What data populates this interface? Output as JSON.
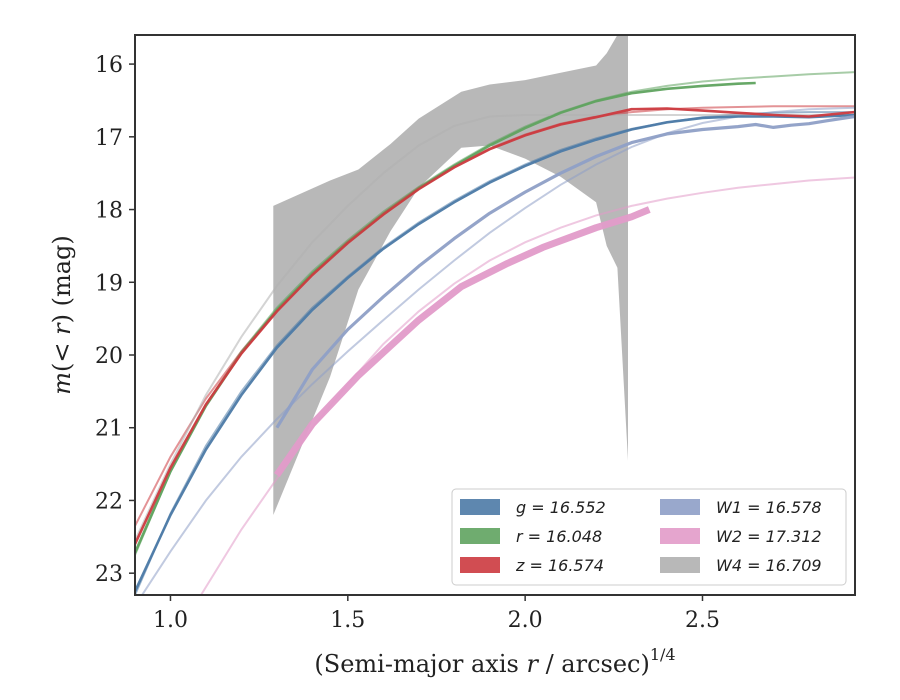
{
  "chart_data": {
    "type": "line",
    "xlabel": "(Semi-major axis r / arcsec)^1/4",
    "ylabel": "m(< r) (mag)",
    "xlim": [
      0.9,
      2.93
    ],
    "ylim": [
      23.3,
      15.6
    ],
    "y_inverted": true,
    "grid": false,
    "legend_position": "lower-right",
    "x_ticks": [
      {
        "value": 1.0,
        "label": "1.0"
      },
      {
        "value": 1.5,
        "label": "1.5"
      },
      {
        "value": 2.0,
        "label": "2.0"
      },
      {
        "value": 2.5,
        "label": "2.5"
      }
    ],
    "y_ticks": [
      {
        "value": 16,
        "label": "16"
      },
      {
        "value": 17,
        "label": "17"
      },
      {
        "value": 18,
        "label": "18"
      },
      {
        "value": 19,
        "label": "19"
      },
      {
        "value": 20,
        "label": "20"
      },
      {
        "value": 21,
        "label": "21"
      },
      {
        "value": 22,
        "label": "22"
      },
      {
        "value": 23,
        "label": "23"
      }
    ],
    "xlabel_parts": {
      "prefix": "(Semi-major axis ",
      "var": "r",
      "mid": " / arcsec)",
      "sup": "1/4"
    },
    "ylabel_parts": {
      "m": "m",
      "open": "(",
      "lt": "<",
      "r": "r",
      "close": ")",
      "unit": " (mag)"
    },
    "series": [
      {
        "name": "g = 16.552",
        "band": "g",
        "value": "16.552",
        "color": "#4c7aa6",
        "model_x": [
          0.9,
          1.0,
          1.1,
          1.2,
          1.3,
          1.4,
          1.5,
          1.6,
          1.7,
          1.8,
          1.9,
          2.0,
          2.1,
          2.2,
          2.3,
          2.4,
          2.5,
          2.6,
          2.7,
          2.8,
          2.93
        ],
        "model_y": [
          23.3,
          22.18,
          21.25,
          20.5,
          19.87,
          19.35,
          18.92,
          18.52,
          18.18,
          17.88,
          17.61,
          17.38,
          17.18,
          17.02,
          16.89,
          16.8,
          16.73,
          16.69,
          16.67,
          16.66,
          16.66
        ],
        "data_x": [
          0.9,
          1.0,
          1.1,
          1.2,
          1.3,
          1.4,
          1.5,
          1.6,
          1.7,
          1.8,
          1.9,
          2.0,
          2.1,
          2.2,
          2.3,
          2.4,
          2.5,
          2.6,
          2.7,
          2.8,
          2.93
        ],
        "data_y": [
          23.25,
          22.2,
          21.3,
          20.55,
          19.9,
          19.38,
          18.94,
          18.54,
          18.2,
          17.9,
          17.63,
          17.4,
          17.2,
          17.04,
          16.9,
          16.8,
          16.74,
          16.72,
          16.72,
          16.73,
          16.7
        ]
      },
      {
        "name": "r = 16.048",
        "band": "r",
        "value": "16.048",
        "color": "#5fa35f",
        "model_x": [
          0.9,
          1.0,
          1.1,
          1.2,
          1.3,
          1.4,
          1.5,
          1.6,
          1.7,
          1.8,
          1.9,
          2.0,
          2.1,
          2.2,
          2.3,
          2.4,
          2.5,
          2.6,
          2.7,
          2.8,
          2.93
        ],
        "model_y": [
          22.75,
          21.6,
          20.68,
          19.95,
          19.35,
          18.85,
          18.42,
          18.03,
          17.69,
          17.38,
          17.1,
          16.86,
          16.66,
          16.5,
          16.38,
          16.3,
          16.24,
          16.2,
          16.17,
          16.14,
          16.11
        ],
        "data_x": [
          0.9,
          1.0,
          1.1,
          1.2,
          1.3,
          1.4,
          1.5,
          1.6,
          1.7,
          1.8,
          1.9,
          2.0,
          2.1,
          2.2,
          2.3,
          2.4,
          2.5,
          2.6,
          2.65
        ],
        "data_y": [
          22.72,
          21.6,
          20.7,
          19.97,
          19.38,
          18.88,
          18.45,
          18.06,
          17.71,
          17.4,
          17.12,
          16.88,
          16.67,
          16.51,
          16.4,
          16.34,
          16.3,
          16.27,
          16.26
        ]
      },
      {
        "name": "z = 16.574",
        "band": "z",
        "value": "16.574",
        "color": "#cc3a3f",
        "model_x": [
          0.9,
          1.0,
          1.1,
          1.2,
          1.3,
          1.4,
          1.5,
          1.6,
          1.7,
          1.8,
          1.9,
          2.0,
          2.1,
          2.2,
          2.3,
          2.4,
          2.5,
          2.6,
          2.7,
          2.8,
          2.93
        ],
        "model_y": [
          22.35,
          21.4,
          20.6,
          19.95,
          19.38,
          18.88,
          18.44,
          18.05,
          17.7,
          17.4,
          17.16,
          16.97,
          16.82,
          16.72,
          16.66,
          16.62,
          16.6,
          16.59,
          16.58,
          16.58,
          16.58
        ],
        "data_x": [
          0.9,
          1.0,
          1.1,
          1.2,
          1.3,
          1.4,
          1.5,
          1.6,
          1.7,
          1.8,
          1.9,
          2.0,
          2.1,
          2.2,
          2.3,
          2.4,
          2.5,
          2.6,
          2.7,
          2.8,
          2.93
        ],
        "data_y": [
          22.6,
          21.55,
          20.68,
          19.98,
          19.4,
          18.9,
          18.46,
          18.07,
          17.72,
          17.42,
          17.17,
          16.98,
          16.83,
          16.73,
          16.62,
          16.61,
          16.64,
          16.67,
          16.7,
          16.72,
          16.66
        ]
      },
      {
        "name": "W1 = 16.578",
        "band": "W1",
        "value": "16.578",
        "color": "#8e9fc6",
        "model_x": [
          0.9,
          1.0,
          1.1,
          1.2,
          1.3,
          1.4,
          1.5,
          1.6,
          1.7,
          1.8,
          1.9,
          2.0,
          2.1,
          2.2,
          2.3,
          2.4,
          2.5,
          2.6,
          2.7,
          2.8,
          2.93
        ],
        "model_y": [
          23.45,
          22.7,
          22.0,
          21.4,
          20.88,
          20.4,
          19.95,
          19.52,
          19.1,
          18.7,
          18.32,
          17.98,
          17.66,
          17.38,
          17.14,
          16.95,
          16.81,
          16.72,
          16.66,
          16.62,
          16.6
        ],
        "data_x": [
          1.3,
          1.4,
          1.5,
          1.6,
          1.7,
          1.8,
          1.9,
          2.0,
          2.1,
          2.2,
          2.3,
          2.4,
          2.5,
          2.6,
          2.65,
          2.7,
          2.75,
          2.8,
          2.85,
          2.93
        ],
        "data_y": [
          21.0,
          20.2,
          19.65,
          19.2,
          18.78,
          18.4,
          18.05,
          17.76,
          17.5,
          17.27,
          17.08,
          16.96,
          16.9,
          16.86,
          16.83,
          16.87,
          16.84,
          16.82,
          16.78,
          16.72
        ]
      },
      {
        "name": "W2 = 17.312",
        "band": "W2",
        "value": "17.312",
        "color": "#e29bc9",
        "model_x": [
          1.08,
          1.2,
          1.3,
          1.4,
          1.5,
          1.6,
          1.7,
          1.8,
          1.9,
          2.0,
          2.1,
          2.2,
          2.3,
          2.4,
          2.5,
          2.6,
          2.7,
          2.8,
          2.93
        ],
        "model_y": [
          23.35,
          22.4,
          21.7,
          21.0,
          20.4,
          19.85,
          19.4,
          19.02,
          18.7,
          18.45,
          18.25,
          18.08,
          17.95,
          17.85,
          17.77,
          17.7,
          17.65,
          17.6,
          17.56
        ],
        "data_x": [
          1.3,
          1.4,
          1.53,
          1.7,
          1.82,
          1.95,
          2.05,
          2.2,
          2.3,
          2.35
        ],
        "data_y": [
          21.65,
          20.95,
          20.28,
          19.52,
          19.06,
          18.74,
          18.52,
          18.25,
          18.1,
          18.0
        ]
      },
      {
        "name": "W4 = 16.709",
        "band": "W4",
        "value": "16.709",
        "color": "#b0b0b0",
        "model_x": [
          0.9,
          1.0,
          1.1,
          1.2,
          1.3,
          1.4,
          1.5,
          1.6,
          1.7,
          1.8,
          1.9,
          2.0,
          2.1,
          2.2,
          2.3,
          2.4,
          2.5,
          2.6,
          2.7,
          2.8,
          2.93
        ],
        "model_y": [
          22.55,
          21.5,
          20.55,
          19.75,
          19.05,
          18.45,
          17.95,
          17.5,
          17.12,
          16.85,
          16.72,
          16.7,
          16.7,
          16.7,
          16.7,
          16.7,
          16.7,
          16.7,
          16.7,
          16.7,
          16.7
        ],
        "band_x": [
          1.29,
          1.45,
          1.53,
          1.62,
          1.7,
          1.82,
          1.9,
          2.0,
          2.1,
          2.2,
          2.23,
          2.26,
          2.29
        ],
        "band_upper": [
          17.95,
          17.6,
          17.45,
          17.1,
          16.75,
          16.38,
          16.28,
          16.22,
          16.12,
          16.02,
          15.85,
          15.6,
          15.6
        ],
        "band_lower": [
          22.2,
          20.3,
          19.1,
          18.3,
          17.7,
          17.15,
          17.12,
          17.3,
          17.55,
          17.9,
          18.5,
          18.8,
          21.45
        ]
      }
    ]
  }
}
